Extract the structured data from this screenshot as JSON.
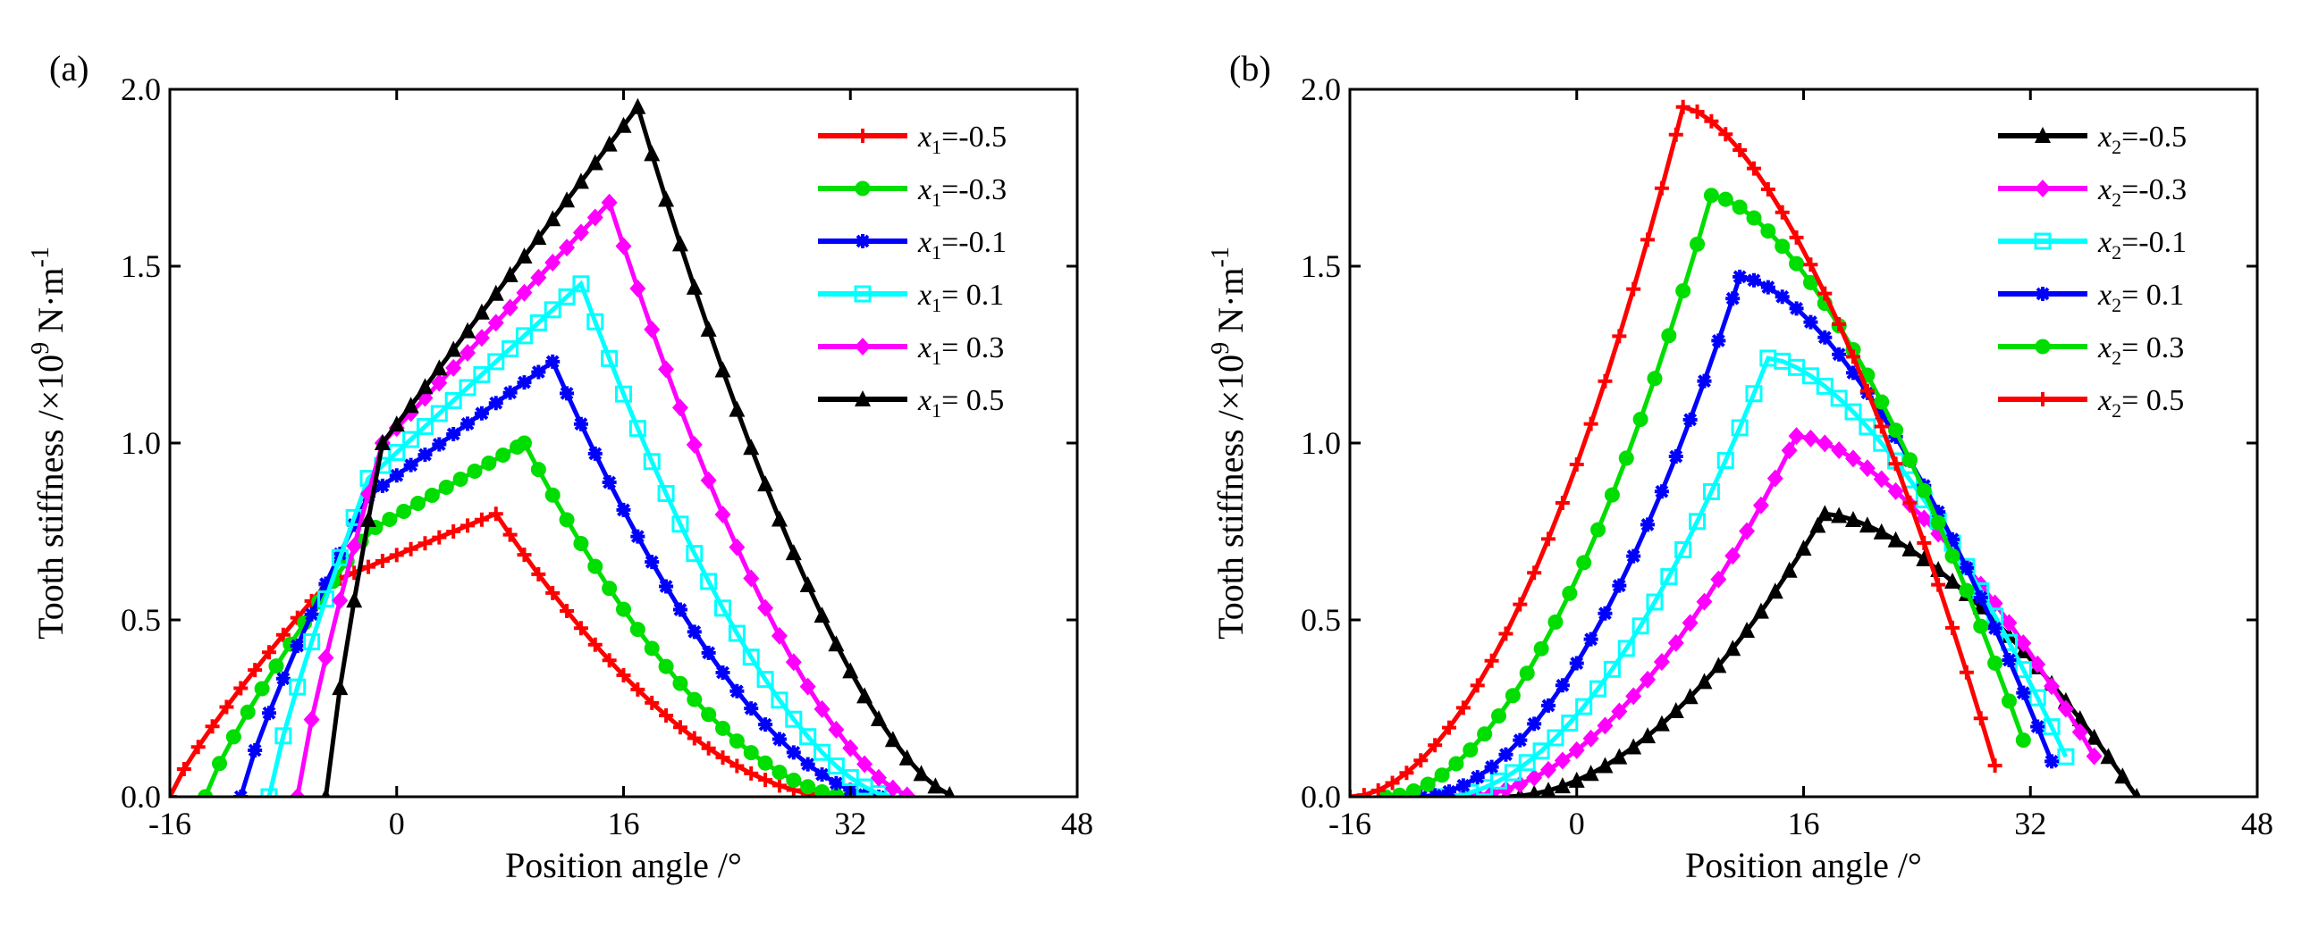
{
  "chart_data": [
    {
      "type": "line",
      "panel_label": "(a)",
      "xlabel": "Position angle /°",
      "ylabel_parts": {
        "text": "Tooth stiffness /×10",
        "sup1": "9",
        "unit": " N·m",
        "sup2": "-1"
      },
      "xlim": [
        -16,
        48
      ],
      "ylim": [
        0,
        2.0
      ],
      "xticks": [
        -16,
        0,
        16,
        32,
        48
      ],
      "xtick_labels": [
        "-16",
        "0",
        "16",
        "32",
        "48"
      ],
      "yticks": [
        0,
        0.5,
        1.0,
        1.5,
        2.0
      ],
      "ytick_labels": [
        "0.0",
        "0.5",
        "1.0",
        "1.5",
        "2.0"
      ],
      "legend_position": "top-right",
      "series": [
        {
          "name": "x1=-0.5",
          "var": "x",
          "sub": "1",
          "value": "=-0.5",
          "color": "#ff0000",
          "marker": "plus",
          "peak": [
            7,
            0.8
          ],
          "x_start": -16,
          "x_end": 31,
          "y_start": 0.0,
          "knee": [
            -5,
            0.6
          ],
          "curvature": 0.8
        },
        {
          "name": "x1=-0.3",
          "var": "x",
          "sub": "1",
          "value": "=-0.3",
          "color": "#00dd00",
          "marker": "circle",
          "peak": [
            9,
            1.0
          ],
          "x_start": -13.5,
          "x_end": 32,
          "y_start": 0.0,
          "knee": [
            -2,
            0.75
          ],
          "curvature": 0.75
        },
        {
          "name": "x1=-0.1",
          "var": "x",
          "sub": "1",
          "value": "=-0.1",
          "color": "#0000ff",
          "marker": "star",
          "peak": [
            11,
            1.23
          ],
          "x_start": -11,
          "x_end": 34,
          "y_start": 0.0,
          "knee": [
            -2,
            0.85
          ],
          "curvature": 0.7
        },
        {
          "name": "x1= 0.1",
          "var": "x",
          "sub": "1",
          "value": "= 0.1",
          "color": "#00ffff",
          "marker": "square",
          "peak": [
            13,
            1.45
          ],
          "x_start": -9,
          "x_end": 35,
          "y_start": 0.0,
          "knee": [
            -2,
            0.9
          ],
          "curvature": 0.65
        },
        {
          "name": "x1= 0.3",
          "var": "x",
          "sub": "1",
          "value": "= 0.3",
          "color": "#ff00ff",
          "marker": "diamond",
          "peak": [
            15,
            1.68
          ],
          "x_start": -7,
          "x_end": 36.5,
          "y_start": 0.0,
          "knee": [
            -1,
            1.0
          ],
          "curvature": 0.6
        },
        {
          "name": "x1= 0.5",
          "var": "x",
          "sub": "1",
          "value": "= 0.5",
          "color": "#000000",
          "marker": "triangle",
          "peak": [
            17,
            1.95
          ],
          "x_start": -5,
          "x_end": 39.5,
          "y_start": 0.0,
          "knee": [
            -1,
            1.0
          ],
          "curvature": 0.55
        }
      ]
    },
    {
      "type": "line",
      "panel_label": "(b)",
      "xlabel": "Position angle /°",
      "ylabel_parts": {
        "text": "Tooth stiffness /×10",
        "sup1": "9",
        "unit": " N·m",
        "sup2": "-1"
      },
      "xlim": [
        -16,
        48
      ],
      "ylim": [
        0,
        2.0
      ],
      "xticks": [
        -16,
        0,
        16,
        32,
        48
      ],
      "xtick_labels": [
        "-16",
        "0",
        "16",
        "32",
        "48"
      ],
      "yticks": [
        0,
        0.5,
        1.0,
        1.5,
        2.0
      ],
      "ytick_labels": [
        "0.0",
        "0.5",
        "1.0",
        "1.5",
        "2.0"
      ],
      "legend_position": "top-right",
      "series": [
        {
          "name": "x2=-0.5",
          "var": "x",
          "sub": "2",
          "value": "=-0.5",
          "color": "#000000",
          "marker": "triangle",
          "rise_start": [
            -5,
            0.0
          ],
          "peak": [
            17.5,
            0.8
          ],
          "fall_end": [
            39.5,
            0.0
          ]
        },
        {
          "name": "x2=-0.3",
          "var": "x",
          "sub": "2",
          "value": "=-0.3",
          "color": "#ff00ff",
          "marker": "diamond",
          "rise_start": [
            -8,
            0.0
          ],
          "peak": [
            15.5,
            1.02
          ],
          "fall_end": [
            37,
            0.08
          ]
        },
        {
          "name": "x2=-0.1",
          "var": "x",
          "sub": "2",
          "value": "=-0.1",
          "color": "#00ffff",
          "marker": "square",
          "rise_start": [
            -9.5,
            0.0
          ],
          "peak": [
            13.5,
            1.24
          ],
          "fall_end": [
            35,
            0.07
          ]
        },
        {
          "name": "x2= 0.1",
          "var": "x",
          "sub": "2",
          "value": "= 0.1",
          "color": "#0000ff",
          "marker": "star",
          "rise_start": [
            -11,
            0.0
          ],
          "peak": [
            11.5,
            1.47
          ],
          "fall_end": [
            33.5,
            0.1
          ]
        },
        {
          "name": "x2= 0.3",
          "var": "x",
          "sub": "2",
          "value": "= 0.3",
          "color": "#00dd00",
          "marker": "circle",
          "rise_start": [
            -13.5,
            0.0
          ],
          "peak": [
            9.5,
            1.7
          ],
          "fall_end": [
            31.5,
            0.16
          ]
        },
        {
          "name": "x2= 0.5",
          "var": "x",
          "sub": "2",
          "value": "= 0.5",
          "color": "#ff0000",
          "marker": "plus",
          "rise_start": [
            -16,
            0.0
          ],
          "peak": [
            7.5,
            1.95
          ],
          "fall_end": [
            30,
            0.02
          ]
        }
      ]
    }
  ]
}
